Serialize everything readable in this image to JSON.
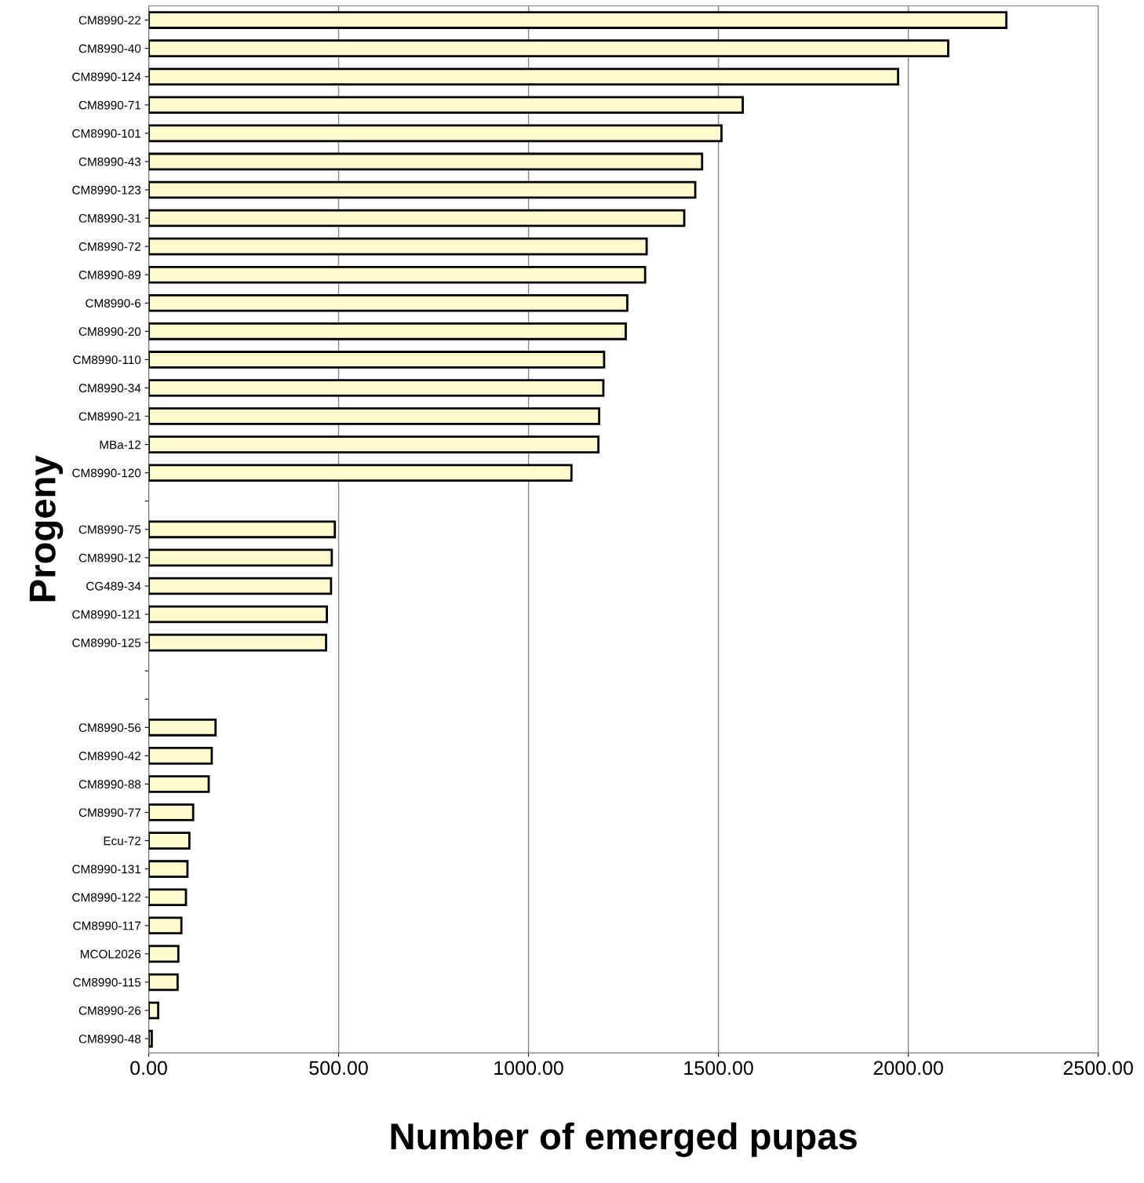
{
  "chart_data": {
    "type": "bar",
    "orientation": "horizontal",
    "xlabel": "Number of emerged pupas",
    "ylabel": "Progeny",
    "categories": [
      "CM8990-22",
      "CM8990-40",
      "CM8990-124",
      "CM8990-71",
      "CM8990-101",
      "CM8990-43",
      "CM8990-123",
      "CM8990-31",
      "CM8990-72",
      "CM8990-89",
      "CM8990-6",
      "CM8990-20",
      "CM8990-110",
      "CM8990-34",
      "CM8990-21",
      "MBa-12",
      "CM8990-120",
      null,
      "CM8990-75",
      "CM8990-12",
      "CG489-34",
      "CM8990-121",
      "CM8990-125",
      null,
      null,
      "CM8990-56",
      "CM8990-42",
      "CM8990-88",
      "CM8990-77",
      "Ecu-72",
      "CM8990-131",
      "CM8990-122",
      "CM8990-117",
      "MCOL2026",
      "CM8990-115",
      "CM8990-26",
      "CM8990-48"
    ],
    "values": [
      2258,
      2105,
      1973,
      1564,
      1508,
      1457,
      1439,
      1410,
      1311,
      1307,
      1260,
      1256,
      1199,
      1197,
      1186,
      1184,
      1113,
      null,
      490,
      482,
      480,
      469,
      467,
      null,
      null,
      176,
      166,
      158,
      117,
      107,
      102,
      98,
      86,
      78,
      76,
      25,
      8
    ],
    "color": "#fffacd",
    "xlim": [
      0,
      2500
    ],
    "xticks": [
      {
        "value": 0,
        "label": "0.00"
      },
      {
        "value": 500,
        "label": "500.00"
      },
      {
        "value": 1000,
        "label": "1000.00"
      },
      {
        "value": 1500,
        "label": "1500.00"
      },
      {
        "value": 2000,
        "label": "2000.00"
      },
      {
        "value": 2500,
        "label": "2500.00"
      }
    ],
    "grid": "x",
    "legend": false
  }
}
